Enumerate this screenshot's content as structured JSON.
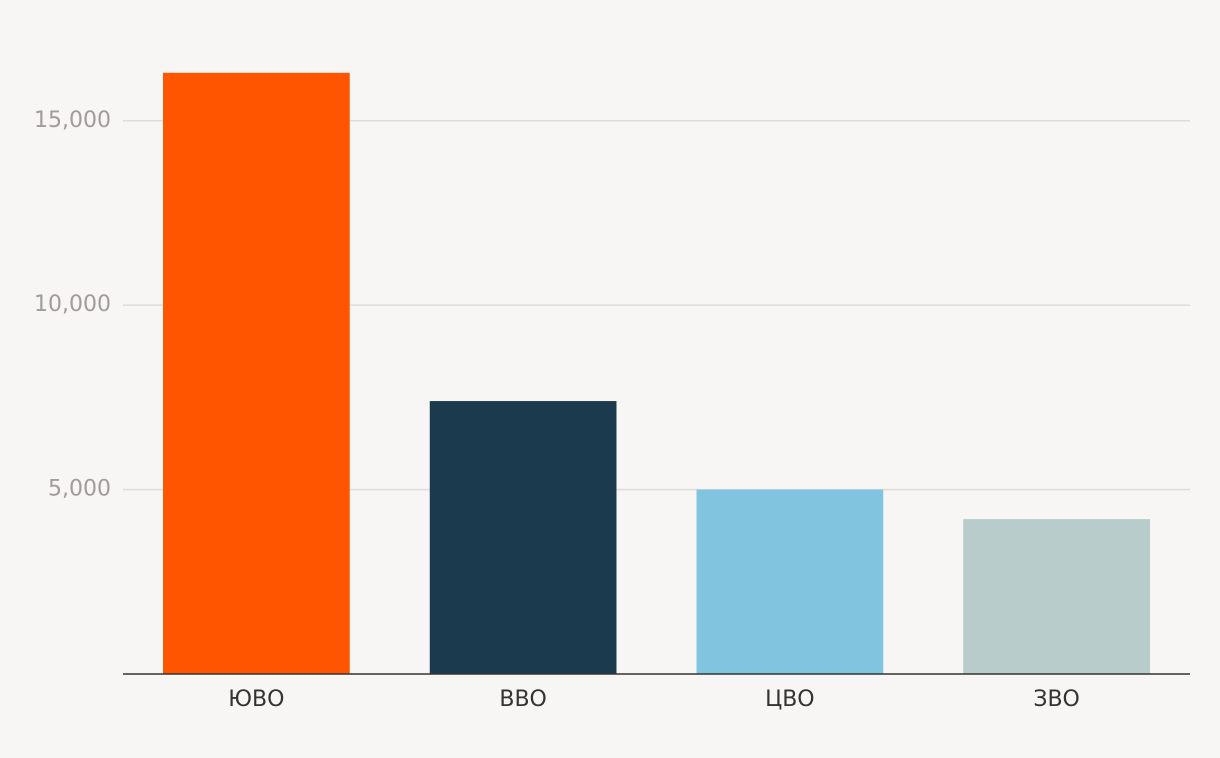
{
  "chart_data": {
    "type": "bar",
    "categories": [
      "ЮВО",
      "ВВО",
      "ЦВО",
      "ЗВО"
    ],
    "values": [
      16300,
      7400,
      5000,
      4200
    ],
    "colors": [
      "#ff5500",
      "#1c3a4d",
      "#80c4df",
      "#b8cccc"
    ],
    "ylim": [
      0,
      17000
    ],
    "yticks": [
      {
        "value": 5000,
        "label": "5,000"
      },
      {
        "value": 10000,
        "label": "10,000"
      },
      {
        "value": 15000,
        "label": "15,000"
      }
    ],
    "grid": true
  }
}
